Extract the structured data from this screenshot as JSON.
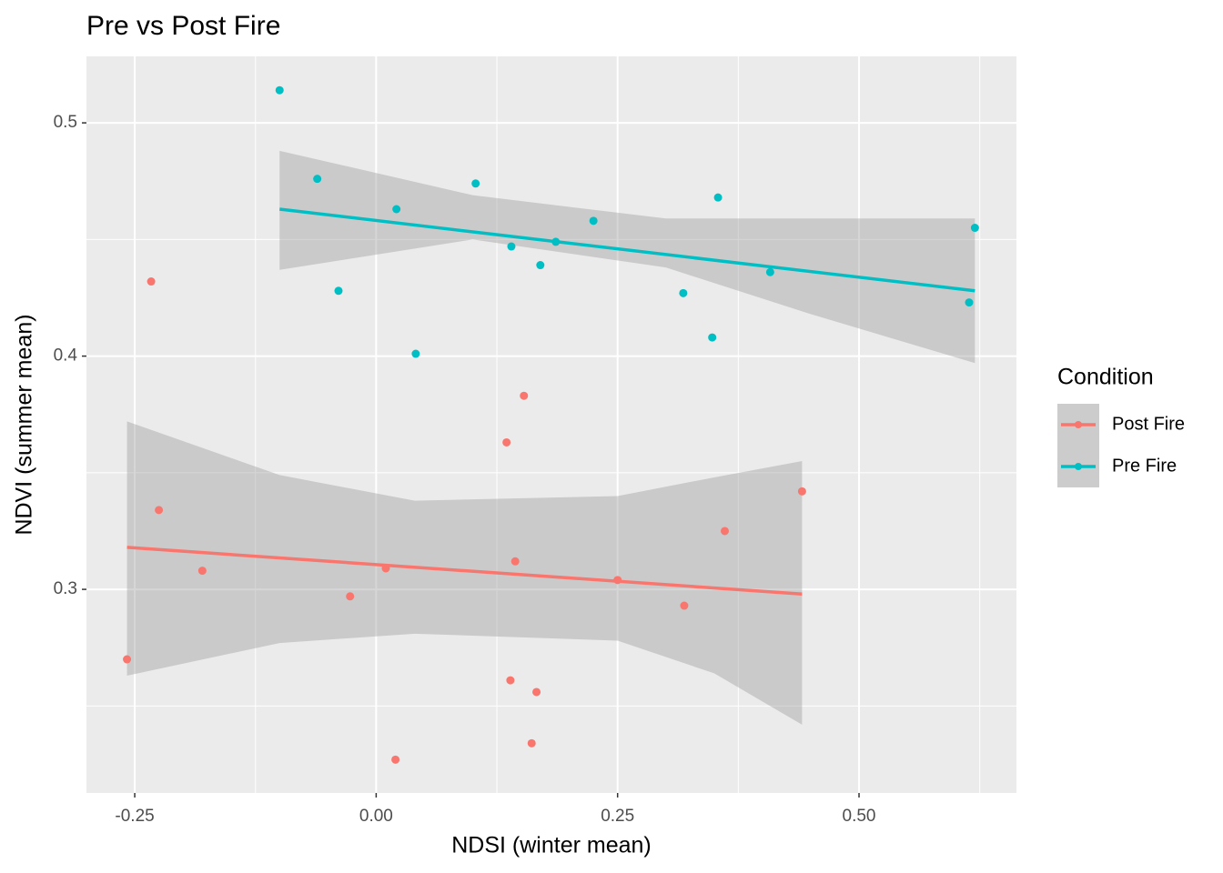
{
  "chart_data": {
    "type": "scatter",
    "title": "Pre vs Post Fire",
    "x_label": "NDSI (winter mean)",
    "y_label": "NDVI (summer mean)",
    "legend_title": "Condition",
    "legend": "right",
    "xlim": [
      -0.3,
      0.663
    ],
    "ylim": [
      0.2127,
      0.5285
    ],
    "xticks": [
      -0.25,
      {
        "value": 0,
        "label": "0.00"
      },
      0.25,
      {
        "value": 0.5,
        "label": "0.50"
      }
    ],
    "yticks": [
      0.3,
      0.4,
      0.5
    ],
    "x_minor_ticks": [
      -0.125,
      0.125,
      0.375,
      0.625
    ],
    "y_minor_ticks": [
      0.25,
      0.35,
      0.45
    ],
    "grid": true,
    "series": [
      {
        "name": "Post Fire",
        "color": "#F8766D",
        "x": [
          -0.258,
          -0.233,
          -0.225,
          -0.18,
          -0.027,
          0.01,
          0.02,
          0.135,
          0.139,
          0.144,
          0.153,
          0.161,
          0.166,
          0.25,
          0.319,
          0.361,
          0.441
        ],
        "values": [
          0.27,
          0.432,
          0.334,
          0.308,
          0.297,
          0.309,
          0.227,
          0.363,
          0.261,
          0.312,
          0.383,
          0.234,
          0.256,
          0.304,
          0.293,
          0.325,
          0.342
        ],
        "fit": {
          "x": [
            -0.258,
            0.441
          ],
          "values": [
            0.318,
            0.298
          ]
        },
        "band": {
          "x": [
            -0.258,
            -0.1,
            0.04,
            0.25,
            0.35,
            0.441
          ],
          "upper": [
            0.372,
            0.349,
            0.338,
            0.34,
            0.348,
            0.355
          ],
          "lower": [
            0.263,
            0.277,
            0.281,
            0.278,
            0.264,
            0.242
          ]
        }
      },
      {
        "name": "Pre Fire",
        "color": "#00BFC4",
        "x": [
          -0.1,
          -0.061,
          -0.039,
          0.021,
          0.041,
          0.103,
          0.14,
          0.17,
          0.186,
          0.225,
          0.318,
          0.348,
          0.354,
          0.408,
          0.614,
          0.62
        ],
        "values": [
          0.514,
          0.476,
          0.428,
          0.463,
          0.401,
          0.474,
          0.447,
          0.439,
          0.449,
          0.458,
          0.427,
          0.408,
          0.468,
          0.436,
          0.423,
          0.455
        ],
        "fit": {
          "x": [
            -0.1,
            0.62
          ],
          "values": [
            0.463,
            0.428
          ]
        },
        "band": {
          "x": [
            -0.1,
            0.1,
            0.3,
            0.45,
            0.62
          ],
          "upper": [
            0.488,
            0.469,
            0.459,
            0.459,
            0.459
          ],
          "lower": [
            0.437,
            0.45,
            0.438,
            0.418,
            0.397
          ]
        }
      }
    ]
  }
}
